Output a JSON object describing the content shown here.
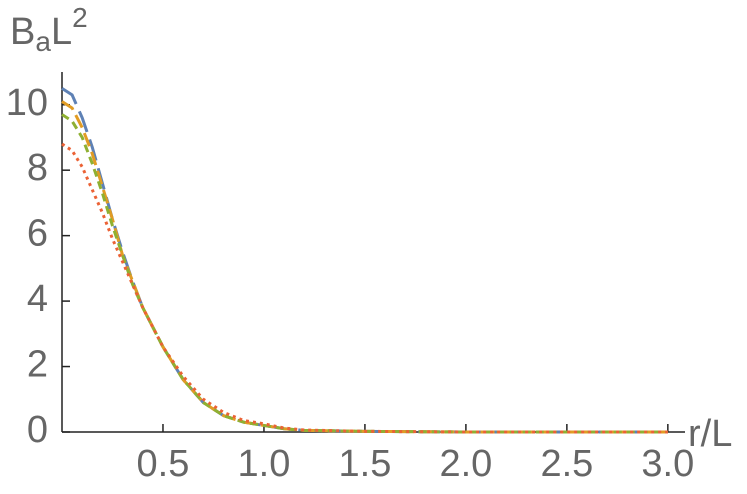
{
  "chart_data": {
    "type": "line",
    "ylabel_parts": {
      "base": "B",
      "sub": "a",
      "main": "L",
      "sup": "2"
    },
    "xlabel": "r/L",
    "x": [
      0,
      0.05,
      0.1,
      0.15,
      0.2,
      0.25,
      0.3,
      0.35,
      0.4,
      0.5,
      0.6,
      0.7,
      0.8,
      0.9,
      1.0,
      1.1,
      1.2,
      1.5,
      2.0,
      2.5,
      3.0
    ],
    "series": [
      {
        "color": "#5e81b5",
        "dash": "22 8",
        "values": [
          10.5,
          10.3,
          9.6,
          8.7,
          7.6,
          6.5,
          5.5,
          4.6,
          3.8,
          2.6,
          1.6,
          0.9,
          0.5,
          0.3,
          0.2,
          0.1,
          0.05,
          0.02,
          0,
          0,
          0
        ]
      },
      {
        "color": "#e19c24",
        "dash": "14 6",
        "values": [
          10.1,
          9.9,
          9.3,
          8.5,
          7.5,
          6.5,
          5.4,
          4.6,
          3.8,
          2.6,
          1.6,
          0.9,
          0.5,
          0.3,
          0.2,
          0.1,
          0.05,
          0.02,
          0,
          0,
          0
        ]
      },
      {
        "color": "#8fb032",
        "dash": "8 5",
        "values": [
          9.7,
          9.5,
          9.0,
          8.2,
          7.3,
          6.3,
          5.4,
          4.5,
          3.8,
          2.6,
          1.6,
          0.9,
          0.5,
          0.3,
          0.2,
          0.1,
          0.05,
          0.02,
          0,
          0,
          0
        ]
      },
      {
        "color": "#eb6235",
        "dash": "3 4",
        "values": [
          8.8,
          8.6,
          8.1,
          7.4,
          6.7,
          5.9,
          5.2,
          4.5,
          3.8,
          2.6,
          1.7,
          1.0,
          0.6,
          0.35,
          0.25,
          0.12,
          0.06,
          0.02,
          0,
          0,
          0
        ]
      }
    ],
    "xlim": [
      0,
      3.08
    ],
    "ylim": [
      0,
      11
    ],
    "xticks": [
      {
        "value": 0.5,
        "label": "0.5"
      },
      {
        "value": 1.0,
        "label": "1.0"
      },
      {
        "value": 1.5,
        "label": "1.5"
      },
      {
        "value": 2.0,
        "label": "2.0"
      },
      {
        "value": 2.5,
        "label": "2.5"
      },
      {
        "value": 3.0,
        "label": "3.0"
      }
    ],
    "yticks": [
      0,
      2,
      4,
      6,
      8,
      10
    ]
  }
}
